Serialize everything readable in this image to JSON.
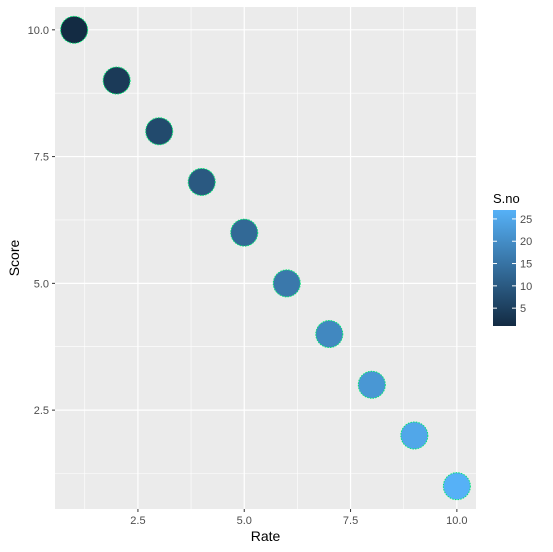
{
  "chart_data": {
    "type": "scatter",
    "title": "",
    "xlabel": "Rate",
    "ylabel": "Score",
    "x": [
      1,
      2,
      3,
      4,
      5,
      6,
      7,
      8,
      9,
      10
    ],
    "y": [
      10,
      9,
      8,
      7,
      6,
      5,
      4,
      3,
      2,
      1
    ],
    "color_values": [
      1,
      4,
      7,
      10,
      13,
      16,
      19,
      22,
      25,
      27
    ],
    "xlim": [
      0.55,
      10.45
    ],
    "ylim": [
      0.55,
      10.45
    ],
    "x_ticks": [
      2.5,
      5.0,
      7.5,
      10.0
    ],
    "x_tick_labels": [
      "2.5",
      "5.0",
      "7.5",
      "10.0"
    ],
    "y_ticks": [
      2.5,
      5.0,
      7.5,
      10.0
    ],
    "y_tick_labels": [
      "2.5",
      "5.0",
      "7.5",
      "10.0"
    ],
    "grid": true,
    "panel_background": "#ebebeb",
    "point_outline_color": "#00e676",
    "legend": {
      "title": "S.no",
      "placement": "right",
      "range": [
        1,
        27
      ],
      "ticks": [
        5,
        10,
        15,
        20,
        25
      ],
      "tick_labels": [
        "5",
        "10",
        "15",
        "20",
        "25"
      ],
      "color_low": "#132b43",
      "color_high": "#56b1f7"
    }
  }
}
